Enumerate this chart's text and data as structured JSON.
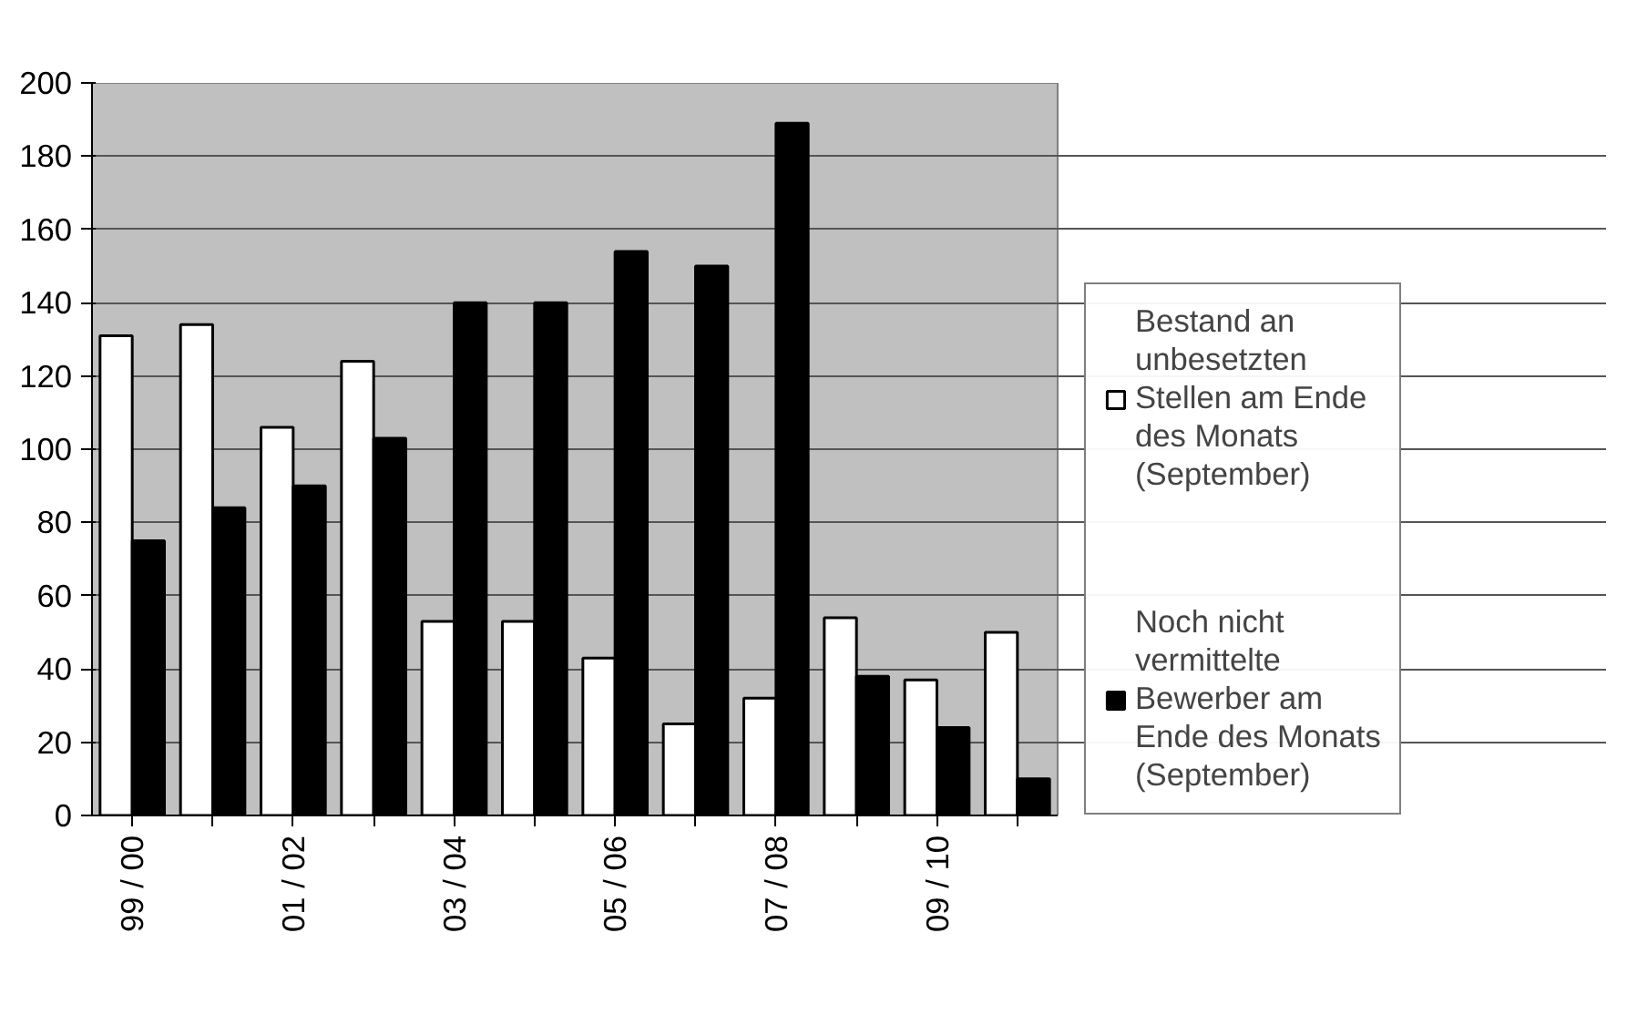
{
  "chart_data": {
    "type": "bar",
    "categories": [
      "99 / 00",
      null,
      "01 / 02",
      null,
      "03 / 04",
      null,
      "05 / 06",
      null,
      "07 / 08",
      null,
      "09 / 10",
      null
    ],
    "series": [
      {
        "name": "Bestand an unbesetzten Stellen am Ende des Monats (September)",
        "color": "#ffffff",
        "values": [
          131,
          134,
          106,
          124,
          53,
          53,
          43,
          25,
          32,
          54,
          37,
          50
        ]
      },
      {
        "name": "Noch nicht vermittelte Bewerber am Ende des Monats (September)",
        "color": "#000000",
        "values": [
          75,
          84,
          90,
          103,
          140,
          140,
          154,
          150,
          189,
          38,
          24,
          10
        ]
      }
    ],
    "ylim": [
      0,
      200
    ],
    "yticks": [
      0,
      20,
      40,
      60,
      80,
      100,
      120,
      140,
      160,
      180,
      200
    ],
    "grid": "y",
    "legend": "right"
  }
}
